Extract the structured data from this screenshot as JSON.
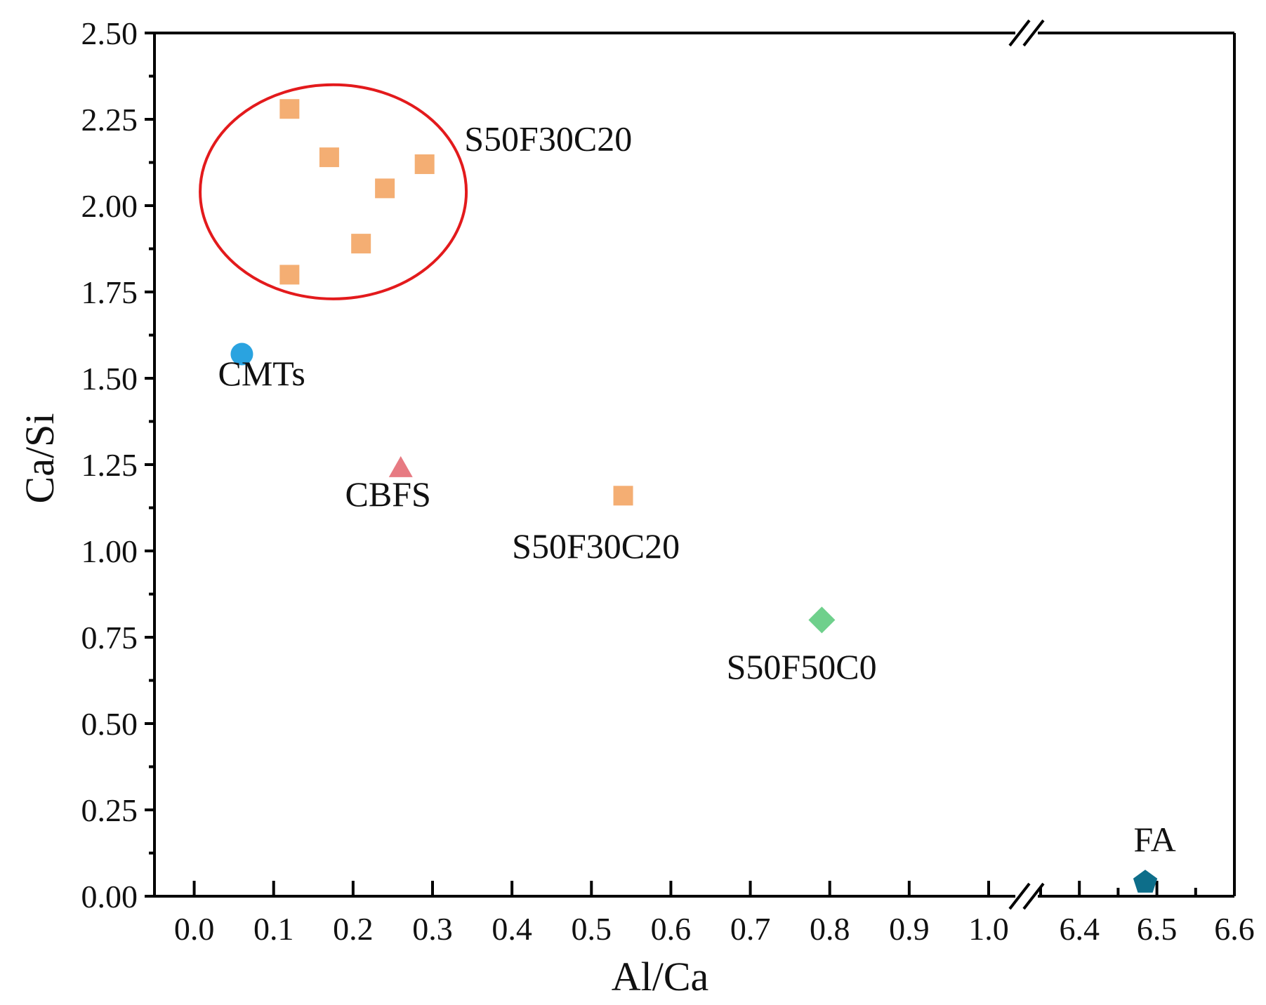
{
  "chart_data": {
    "type": "scatter",
    "title": "",
    "xlabel": "Al/Ca",
    "ylabel": "Ca/Si",
    "ylim": [
      0,
      2.5
    ],
    "yticks": [
      "0.00",
      "0.25",
      "0.50",
      "0.75",
      "1.00",
      "1.25",
      "1.50",
      "1.75",
      "2.00",
      "2.25",
      "2.50"
    ],
    "x_break": {
      "left_range": [
        -0.05,
        1.0
      ],
      "right_range": [
        6.35,
        6.6
      ],
      "left_ticks": [
        "0.0",
        "0.1",
        "0.2",
        "0.3",
        "0.4",
        "0.5",
        "0.6",
        "0.7",
        "0.8",
        "0.9",
        "1.0"
      ],
      "right_ticks": [
        "6.4",
        "6.5",
        "6.6"
      ]
    },
    "grid": false,
    "series": [
      {
        "name": "S50F30C20",
        "marker": "square",
        "color": "#F4AE73",
        "points": [
          {
            "x": 0.12,
            "y": 2.28
          },
          {
            "x": 0.17,
            "y": 2.14
          },
          {
            "x": 0.24,
            "y": 2.05
          },
          {
            "x": 0.29,
            "y": 2.12
          },
          {
            "x": 0.21,
            "y": 1.89
          },
          {
            "x": 0.12,
            "y": 1.8
          },
          {
            "x": 0.54,
            "y": 1.16
          }
        ]
      },
      {
        "name": "CMTs",
        "marker": "circle",
        "color": "#2AA3E0",
        "points": [
          {
            "x": 0.06,
            "y": 1.57
          }
        ]
      },
      {
        "name": "CBFS",
        "marker": "triangle",
        "color": "#E77A82",
        "points": [
          {
            "x": 0.26,
            "y": 1.24
          }
        ]
      },
      {
        "name": "S50F50C0",
        "marker": "diamond",
        "color": "#6FD08C",
        "points": [
          {
            "x": 0.79,
            "y": 0.8
          }
        ]
      },
      {
        "name": "FA",
        "marker": "pentagon",
        "color": "#0D6E8A",
        "points": [
          {
            "x": 6.485,
            "y": 0.04
          }
        ]
      }
    ],
    "annotations": [
      {
        "text": "S50F30C20",
        "x": 0.34,
        "y": 2.16
      },
      {
        "text": "CMTs",
        "x": 0.03,
        "y": 1.48
      },
      {
        "text": "CBFS",
        "x": 0.19,
        "y": 1.13
      },
      {
        "text": "S50F30C20",
        "x": 0.4,
        "y": 0.98
      },
      {
        "text": "S50F50C0",
        "x": 0.67,
        "y": 0.63
      },
      {
        "text": "FA",
        "x": 6.47,
        "y": 0.13
      }
    ],
    "highlight_ellipse": {
      "cx": 0.175,
      "cy": 2.04,
      "rx": 0.1675,
      "ry": 0.31,
      "color": "#E31A1C"
    }
  }
}
